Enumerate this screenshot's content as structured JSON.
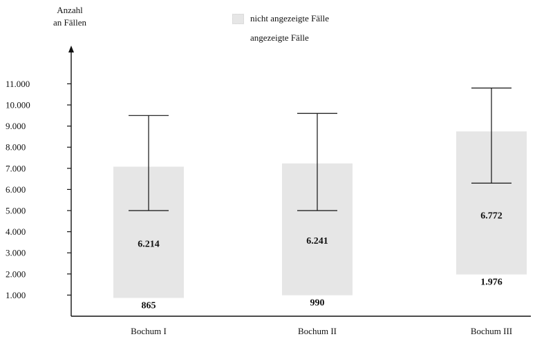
{
  "chart_data": {
    "type": "bar",
    "ylabel": [
      "Anzahl",
      "an Fällen"
    ],
    "ylim": [
      0,
      11000
    ],
    "yticks": [
      1000,
      2000,
      3000,
      4000,
      5000,
      6000,
      7000,
      8000,
      9000,
      10000,
      11000
    ],
    "ytick_labels": [
      "1.000",
      "2.000",
      "3.000",
      "4.000",
      "5.000",
      "6.000",
      "7.000",
      "8.000",
      "9.000",
      "10.000",
      "11.000"
    ],
    "categories": [
      "Bochum I",
      "Bochum II",
      "Bochum III"
    ],
    "series": [
      {
        "name": "angezeigte Fälle",
        "values": [
          865,
          990,
          1976
        ],
        "labels": [
          "865",
          "990",
          "1.976"
        ]
      },
      {
        "name": "nicht angezeigte Fälle",
        "values": [
          6214,
          6241,
          6772
        ],
        "labels": [
          "6.214",
          "6.241",
          "6.772"
        ]
      }
    ],
    "error_bars": [
      {
        "category": "Bochum I",
        "low": 5000,
        "high": 9500
      },
      {
        "category": "Bochum II",
        "low": 5000,
        "high": 9600
      },
      {
        "category": "Bochum III",
        "low": 6300,
        "high": 10800
      }
    ],
    "legend_position": "top",
    "grid": false,
    "colors": {
      "hidden_fill": "#e6e6e6",
      "axis": "#111111"
    }
  }
}
